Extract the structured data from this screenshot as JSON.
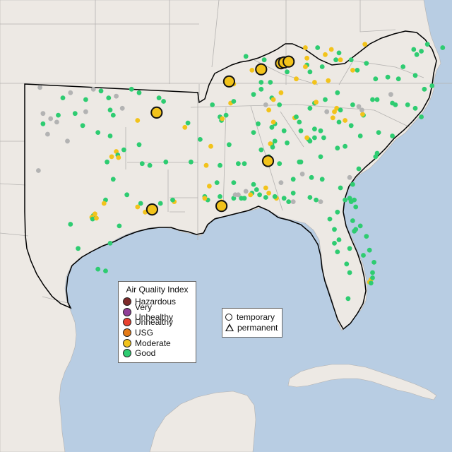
{
  "map": {
    "colors": {
      "ocean": "#b8cde3",
      "land": "#ede9e4",
      "state_border": "#b4b2b0",
      "region_outline": "#000000",
      "unknown": "#b3b3b3"
    },
    "aqi_legend": {
      "title": "Air Quality Index",
      "categories": [
        {
          "label": "Hazardous",
          "color": "#7e2b2b"
        },
        {
          "label": "Very Unhealthy",
          "color": "#8f3f97"
        },
        {
          "label": "Unhealthy",
          "color": "#e8412f"
        },
        {
          "label": "USG",
          "color": "#e57b17"
        },
        {
          "label": "Moderate",
          "color": "#f2c31b"
        },
        {
          "label": "Good",
          "color": "#2ecc71"
        }
      ]
    },
    "type_legend": {
      "items": [
        {
          "label": "temporary",
          "icon": "circle-icon"
        },
        {
          "label": "permanent",
          "icon": "triangle-icon"
        }
      ]
    },
    "large_sites": [
      [
        -94.35,
        35.35
      ],
      [
        -87.05,
        32.55
      ],
      [
        -94.65,
        29.75
      ],
      [
        -90.1,
        29.95
      ],
      [
        -89.6,
        37.15
      ],
      [
        -87.5,
        37.85
      ],
      [
        -86.2,
        38.2
      ],
      [
        -86.0,
        38.25
      ],
      [
        -85.7,
        38.3
      ]
    ],
    "sites": [
      [
        "G",
        -100.5,
        36.2
      ],
      [
        "G",
        -99.0,
        36.1
      ],
      [
        "G",
        -97.5,
        36.2
      ],
      [
        "G",
        -98.0,
        36.6
      ],
      [
        "G",
        -96.0,
        36.7
      ],
      [
        "G",
        -95.5,
        36.5
      ],
      [
        "G",
        -100.8,
        35.2
      ],
      [
        "G",
        -99.7,
        35.3
      ],
      [
        "G",
        -97.4,
        35.5
      ],
      [
        "G",
        -97.2,
        35.2
      ],
      [
        "G",
        -101.8,
        34.7
      ],
      [
        "G",
        -99.2,
        34.6
      ],
      [
        "G",
        -98.2,
        34.2
      ],
      [
        "G",
        -97.4,
        34.0
      ],
      [
        "M",
        -95.6,
        34.9
      ],
      [
        "G",
        -94.2,
        36.2
      ],
      [
        "G",
        -93.9,
        36.0
      ],
      [
        "G",
        -90.7,
        35.8
      ],
      [
        "G",
        -90.2,
        35.1
      ],
      [
        "G",
        -90.1,
        34.9
      ],
      [
        "G",
        -89.8,
        35.2
      ],
      [
        "M",
        -90.05,
        35.0
      ],
      [
        "M",
        -89.5,
        35.9
      ],
      [
        "G",
        -92.3,
        34.75
      ],
      [
        "M",
        -92.5,
        34.5
      ],
      [
        "G",
        -91.5,
        33.8
      ],
      [
        "G",
        -95.5,
        33.5
      ],
      [
        "G",
        -96.5,
        33.2
      ],
      [
        "M",
        -97.0,
        33.1
      ],
      [
        "M",
        -97.3,
        32.8
      ],
      [
        "G",
        -96.9,
        32.9
      ],
      [
        "M",
        -96.85,
        32.75
      ],
      [
        "G",
        -97.6,
        32.5
      ],
      [
        "G",
        -95.3,
        32.4
      ],
      [
        "G",
        -94.8,
        32.3
      ],
      [
        "G",
        -93.75,
        32.5
      ],
      [
        "M",
        -91.1,
        32.3
      ],
      [
        "G",
        -92.1,
        32.5
      ],
      [
        "G",
        -90.2,
        32.3
      ],
      [
        "G",
        -89.0,
        32.4
      ],
      [
        "M",
        -90.9,
        31.1
      ],
      [
        "G",
        -97.7,
        30.3
      ],
      [
        "M",
        -97.8,
        30.1
      ],
      [
        "G",
        -97.2,
        31.5
      ],
      [
        "G",
        -96.3,
        30.6
      ],
      [
        "G",
        -95.4,
        30.1
      ],
      [
        "M",
        -95.6,
        29.9
      ],
      [
        "M",
        -95.1,
        29.6
      ],
      [
        "G",
        -94.1,
        30.1
      ],
      [
        "M",
        -93.2,
        30.2
      ],
      [
        "G",
        -93.3,
        30.3
      ],
      [
        "G",
        -91.2,
        30.5
      ],
      [
        "G",
        -91.0,
        30.3
      ],
      [
        "M",
        -91.2,
        30.4
      ],
      [
        "G",
        -90.2,
        30.5
      ],
      [
        "M",
        -90.1,
        30.2
      ],
      [
        "M",
        -89.9,
        30.0
      ],
      [
        "G",
        -89.3,
        30.4
      ],
      [
        "G",
        -88.8,
        30.4
      ],
      [
        "G",
        -88.6,
        30.4
      ],
      [
        "G",
        -88.1,
        30.7
      ],
      [
        "M",
        -88.2,
        30.6
      ],
      [
        "G",
        -87.2,
        30.45
      ],
      [
        "G",
        -87.6,
        30.6
      ],
      [
        "M",
        -86.5,
        30.4
      ],
      [
        "G",
        -86.6,
        30.5
      ],
      [
        "G",
        -98.5,
        29.4
      ],
      [
        "M",
        -98.6,
        29.3
      ],
      [
        "M",
        -98.4,
        29.5
      ],
      [
        "G",
        -98.55,
        29.2
      ],
      [
        "M",
        -98.3,
        29.25
      ],
      [
        "G",
        -97.4,
        27.8
      ],
      [
        "G",
        -97.7,
        26.2
      ],
      [
        "G",
        -98.2,
        26.3
      ],
      [
        "G",
        -99.5,
        27.5
      ],
      [
        "G",
        -100.0,
        28.9
      ],
      [
        "G",
        -96.8,
        28.8
      ],
      [
        "G",
        -89.3,
        36.0
      ],
      [
        "G",
        -88.0,
        36.4
      ],
      [
        "G",
        -86.8,
        36.2
      ],
      [
        "M",
        -86.7,
        36.1
      ],
      [
        "M",
        -86.2,
        36.5
      ],
      [
        "G",
        -86.3,
        35.8
      ],
      [
        "M",
        -87.0,
        35.5
      ],
      [
        "G",
        -87.5,
        36.7
      ],
      [
        "M",
        -85.3,
        35.05
      ],
      [
        "G",
        -85.2,
        35.1
      ],
      [
        "G",
        -84.0,
        35.9
      ],
      [
        "M",
        -83.9,
        35.95
      ],
      [
        "G",
        -84.3,
        35.6
      ],
      [
        "G",
        -82.5,
        36.5
      ],
      [
        "G",
        -83.3,
        36.1
      ],
      [
        "M",
        -82.55,
        35.6
      ],
      [
        "M",
        -82.7,
        35.4
      ],
      [
        "G",
        -82.3,
        35.5
      ],
      [
        "G",
        -81.5,
        35.8
      ],
      [
        "G",
        -80.8,
        35.2
      ],
      [
        "M",
        -80.85,
        35.25
      ],
      [
        "G",
        -80.2,
        36.1
      ],
      [
        "G",
        -79.9,
        36.1
      ],
      [
        "G",
        -78.9,
        35.9
      ],
      [
        "G",
        -78.7,
        35.8
      ],
      [
        "G",
        -77.9,
        35.8
      ],
      [
        "G",
        -77.4,
        35.6
      ],
      [
        "G",
        -77.0,
        35.1
      ],
      [
        "G",
        -76.8,
        36.7
      ],
      [
        "G",
        -80.0,
        37.3
      ],
      [
        "G",
        -78.5,
        37.3
      ],
      [
        "G",
        -77.4,
        37.5
      ],
      [
        "G",
        -79.2,
        37.4
      ],
      [
        "G",
        -78.2,
        38.0
      ],
      [
        "G",
        -76.3,
        36.9
      ],
      [
        "G",
        -77.3,
        38.7
      ],
      [
        "G",
        -77.5,
        39.0
      ],
      [
        "G",
        -76.6,
        39.3
      ],
      [
        "G",
        -77.0,
        38.9
      ],
      [
        "G",
        -75.6,
        39.1
      ],
      [
        "G",
        -81.6,
        38.4
      ],
      [
        "G",
        -80.6,
        38.2
      ],
      [
        "G",
        -81.2,
        37.8
      ],
      [
        "G",
        -82.6,
        38.4
      ],
      [
        "G",
        -83.5,
        38.0
      ],
      [
        "G",
        -84.5,
        38.1
      ],
      [
        "M",
        -84.6,
        38.0
      ],
      [
        "G",
        -84.3,
        37.7
      ],
      [
        "G",
        -85.8,
        37.7
      ],
      [
        "G",
        -86.9,
        37.1
      ],
      [
        "G",
        -87.5,
        37.1
      ],
      [
        "M",
        -85.2,
        37.3
      ],
      [
        "M",
        -84.0,
        37.1
      ],
      [
        "M",
        -83.1,
        37.2
      ],
      [
        "M",
        -81.5,
        37.8
      ],
      [
        "M",
        -82.3,
        38.4
      ],
      [
        "M",
        -83.3,
        38.7
      ],
      [
        "M",
        -84.5,
        38.5
      ],
      [
        "G",
        -83.8,
        39.1
      ],
      [
        "G",
        -82.4,
        38.8
      ],
      [
        "G",
        -87.3,
        38.4
      ],
      [
        "G",
        -88.5,
        38.6
      ],
      [
        "M",
        -89.3,
        37.0
      ],
      [
        "M",
        -88.1,
        37.8
      ],
      [
        "M",
        -84.6,
        39.1
      ],
      [
        "M",
        -80.7,
        39.3
      ],
      [
        "M",
        -82.9,
        39.0
      ],
      [
        "G",
        -88.0,
        34.2
      ],
      [
        "G",
        -87.7,
        34.7
      ],
      [
        "G",
        -86.6,
        34.7
      ],
      [
        "G",
        -86.8,
        34.5
      ],
      [
        "M",
        -86.7,
        34.8
      ],
      [
        "G",
        -86.0,
        34.3
      ],
      [
        "G",
        -86.8,
        33.5
      ],
      [
        "M",
        -86.9,
        33.55
      ],
      [
        "G",
        -86.75,
        33.35
      ],
      [
        "G",
        -86.6,
        33.7
      ],
      [
        "G",
        -85.8,
        33.6
      ],
      [
        "G",
        -87.5,
        33.2
      ],
      [
        "G",
        -87.0,
        32.8
      ],
      [
        "G",
        -86.3,
        32.4
      ],
      [
        "G",
        -85.0,
        32.5
      ],
      [
        "G",
        -85.4,
        31.5
      ],
      [
        "G",
        -88.0,
        31.2
      ],
      [
        "G",
        -87.8,
        30.9
      ],
      [
        "M",
        -87.2,
        31.0
      ],
      [
        "M",
        -87.0,
        30.7
      ],
      [
        "G",
        -88.6,
        32.4
      ],
      [
        "G",
        -89.6,
        33.5
      ],
      [
        "M",
        -90.8,
        33.4
      ],
      [
        "G",
        -90.4,
        31.3
      ],
      [
        "G",
        -89.3,
        31.3
      ],
      [
        "G",
        -84.4,
        33.8
      ],
      [
        "G",
        -84.3,
        33.7
      ],
      [
        "M",
        -84.5,
        33.9
      ],
      [
        "G",
        -84.0,
        33.9
      ],
      [
        "G",
        -83.4,
        33.9
      ],
      [
        "G",
        -83.6,
        34.3
      ],
      [
        "G",
        -85.0,
        34.8
      ],
      [
        "G",
        -84.9,
        34.3
      ],
      [
        "G",
        -83.6,
        32.8
      ],
      [
        "G",
        -84.9,
        32.5
      ],
      [
        "G",
        -82.0,
        33.4
      ],
      [
        "G",
        -81.0,
        34.0
      ],
      [
        "G",
        -81.6,
        34.6
      ],
      [
        "G",
        -82.4,
        34.8
      ],
      [
        "M",
        -82.0,
        34.9
      ],
      [
        "G",
        -80.0,
        32.8
      ],
      [
        "G",
        -79.8,
        34.2
      ],
      [
        "G",
        -81.1,
        32.1
      ],
      [
        "G",
        -81.5,
        31.2
      ],
      [
        "G",
        -83.5,
        31.5
      ],
      [
        "G",
        -84.2,
        31.6
      ],
      [
        "G",
        -82.3,
        31.0
      ],
      [
        "G",
        -78.9,
        34.0
      ],
      [
        "G",
        -79.9,
        33.0
      ],
      [
        "G",
        -82.5,
        33.3
      ],
      [
        "M",
        -82.8,
        35.05
      ],
      [
        "G",
        -84.0,
        34.4
      ],
      [
        "G",
        -84.3,
        30.45
      ],
      [
        "G",
        -82.0,
        30.3
      ],
      [
        "G",
        -81.7,
        30.4
      ],
      [
        "G",
        -81.4,
        30.3
      ],
      [
        "G",
        -81.3,
        29.9
      ],
      [
        "G",
        -81.5,
        29.1
      ],
      [
        "G",
        -81.4,
        28.5
      ],
      [
        "G",
        -81.3,
        28.6
      ],
      [
        "G",
        -80.6,
        28.2
      ],
      [
        "G",
        -82.5,
        29.6
      ],
      [
        "G",
        -82.4,
        28.0
      ],
      [
        "G",
        -82.7,
        27.8
      ],
      [
        "G",
        -82.5,
        27.3
      ],
      [
        "G",
        -81.9,
        26.6
      ],
      [
        "G",
        -81.7,
        26.1
      ],
      [
        "G",
        -80.4,
        27.4
      ],
      [
        "G",
        -80.1,
        26.7
      ],
      [
        "G",
        -80.2,
        26.1
      ],
      [
        "M",
        -80.3,
        25.7
      ],
      [
        "M",
        -80.4,
        25.55
      ],
      [
        "G",
        -80.2,
        25.8
      ],
      [
        "G",
        -80.3,
        25.5
      ],
      [
        "G",
        -81.8,
        24.6
      ],
      [
        "G",
        -83.0,
        29.2
      ],
      [
        "G",
        -83.9,
        30.3
      ],
      [
        "G",
        -85.7,
        30.2
      ],
      [
        "G",
        -86.0,
        30.4
      ],
      [
        "G",
        -85.4,
        30.7
      ],
      [
        "G",
        -82.7,
        28.6
      ],
      [
        "G",
        -81.7,
        27.5
      ],
      [
        "G",
        -80.8,
        27.1
      ],
      [
        "G",
        -81.0,
        28.8
      ],
      [
        "G",
        -81.6,
        30.2
      ],
      [
        "U",
        -102.0,
        36.8
      ],
      [
        "U",
        -100.0,
        36.5
      ],
      [
        "U",
        -98.5,
        36.7
      ],
      [
        "U",
        -101.8,
        35.3
      ],
      [
        "U",
        -101.3,
        35.0
      ],
      [
        "U",
        -100.9,
        34.8
      ],
      [
        "U",
        -99.0,
        35.4
      ],
      [
        "U",
        -101.5,
        34.1
      ],
      [
        "U",
        -100.2,
        33.7
      ],
      [
        "U",
        -96.6,
        35.6
      ],
      [
        "U",
        -97.0,
        36.3
      ],
      [
        "U",
        -102.1,
        32.0
      ],
      [
        "U",
        -88.5,
        30.8
      ],
      [
        "U",
        -85.4,
        30.2
      ],
      [
        "U",
        -84.8,
        31.8
      ],
      [
        "U",
        -80.9,
        35.5
      ],
      [
        "U",
        -79.0,
        36.4
      ],
      [
        "U",
        -83.2,
        35.4
      ],
      [
        "U",
        -86.2,
        31.3
      ],
      [
        "U",
        -89.2,
        30.6
      ],
      [
        "U",
        -81.7,
        31.6
      ],
      [
        "U",
        -83.6,
        30.2
      ],
      [
        "U",
        -87.2,
        35.8
      ],
      [
        "U",
        -81.1,
        35.7
      ],
      [
        "U",
        -89.0,
        30.6
      ]
    ]
  }
}
